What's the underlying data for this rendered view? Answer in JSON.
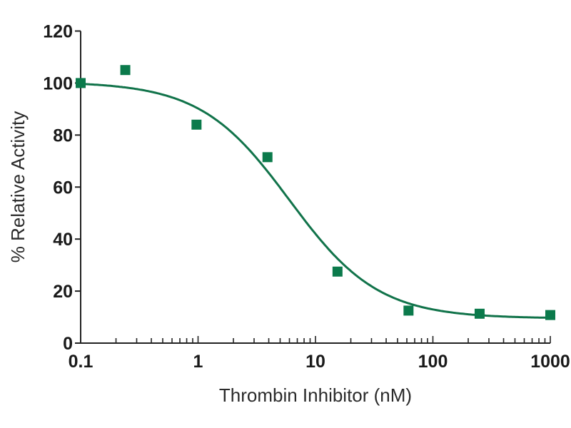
{
  "chart_data": {
    "type": "scatter",
    "title": "",
    "xlabel": "Thrombin Inhibitor (nM)",
    "ylabel": "% Relative Activity",
    "xscale": "log",
    "xlim": [
      0.1,
      1000
    ],
    "ylim": [
      0,
      120
    ],
    "x_ticks": [
      0.1,
      1,
      10,
      100,
      1000
    ],
    "x_tick_labels": [
      "0.1",
      "1",
      "10",
      "100",
      "1000"
    ],
    "y_ticks": [
      0,
      20,
      40,
      60,
      80,
      100,
      120
    ],
    "y_tick_labels": [
      "0",
      "20",
      "40",
      "60",
      "80",
      "100",
      "120"
    ],
    "grid": false,
    "series": [
      {
        "name": "data",
        "marker": "square",
        "color": "#0b7a4b",
        "x": [
          0.1,
          0.24,
          0.97,
          3.9,
          15.4,
          62,
          250,
          1000
        ],
        "y": [
          100,
          105,
          84,
          71.5,
          27.5,
          12.5,
          11.3,
          10.8
        ]
      }
    ],
    "fit": {
      "name": "four-parameter logistic fit",
      "color": "#11734a",
      "top": 100.5,
      "bottom": 9.5,
      "ic50": 6.0,
      "hill": 1.15
    }
  }
}
